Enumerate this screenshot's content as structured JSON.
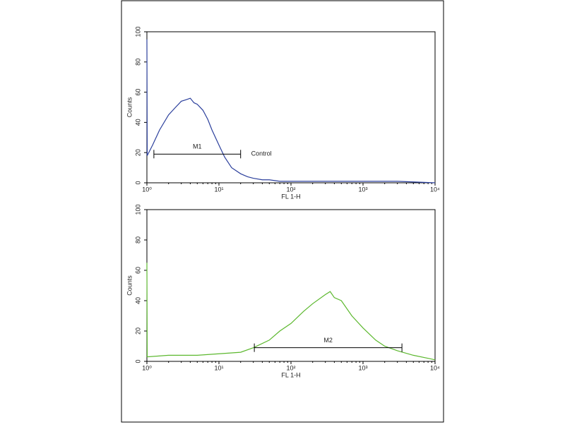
{
  "chart_data": [
    {
      "type": "line",
      "xscale": "log",
      "x_label": "FL 1-H",
      "y_label": "Counts",
      "color": "#2b3f9c",
      "xlim": [
        1,
        10000
      ],
      "ylim": [
        0,
        100
      ],
      "xticks": [
        {
          "value": 1,
          "label": "10⁰"
        },
        {
          "value": 10,
          "label": "10¹"
        },
        {
          "value": 100,
          "label": "10²"
        },
        {
          "value": 1000,
          "label": "10³"
        },
        {
          "value": 10000,
          "label": "10⁴"
        }
      ],
      "yticks": [
        0,
        20,
        40,
        60,
        80,
        100
      ],
      "x": [
        1,
        1.01,
        1.2,
        1.5,
        2,
        2.5,
        3,
        3.5,
        4,
        4.5,
        5,
        6,
        7,
        8,
        10,
        12,
        15,
        20,
        25,
        30,
        40,
        50,
        70,
        100,
        200,
        500,
        1000,
        3000,
        10000
      ],
      "values": [
        95,
        18,
        25,
        35,
        45,
        50,
        54,
        55,
        56,
        53,
        52,
        48,
        42,
        35,
        25,
        17,
        10,
        6,
        4,
        3,
        2,
        2,
        1,
        1,
        1,
        1,
        1,
        1,
        0
      ],
      "markers": [
        {
          "text": "M1",
          "x_range": [
            1.25,
            20
          ],
          "y": 19
        }
      ],
      "annotations": [
        {
          "text": "Control",
          "x": 28,
          "y": 19
        }
      ]
    },
    {
      "type": "line",
      "xscale": "log",
      "x_label": "FL 1-H",
      "y_label": "Counts",
      "color": "#5cb82e",
      "xlim": [
        1,
        10000
      ],
      "ylim": [
        0,
        100
      ],
      "xticks": [
        {
          "value": 1,
          "label": "10⁰"
        },
        {
          "value": 10,
          "label": "10¹"
        },
        {
          "value": 100,
          "label": "10²"
        },
        {
          "value": 1000,
          "label": "10³"
        },
        {
          "value": 10000,
          "label": "10⁴"
        }
      ],
      "yticks": [
        0,
        20,
        40,
        60,
        80,
        100
      ],
      "x": [
        1,
        1.01,
        2,
        5,
        10,
        20,
        30,
        50,
        70,
        100,
        150,
        200,
        300,
        350,
        400,
        500,
        700,
        1000,
        1500,
        2000,
        3000,
        5000,
        8000,
        10000
      ],
      "values": [
        65,
        3,
        4,
        4,
        5,
        6,
        9,
        14,
        20,
        25,
        33,
        38,
        44,
        46,
        42,
        40,
        30,
        22,
        14,
        10,
        7,
        4,
        2,
        1
      ],
      "markers": [
        {
          "text": "M2",
          "x_range": [
            31,
            3470
          ],
          "y": 9
        }
      ],
      "annotations": []
    }
  ]
}
